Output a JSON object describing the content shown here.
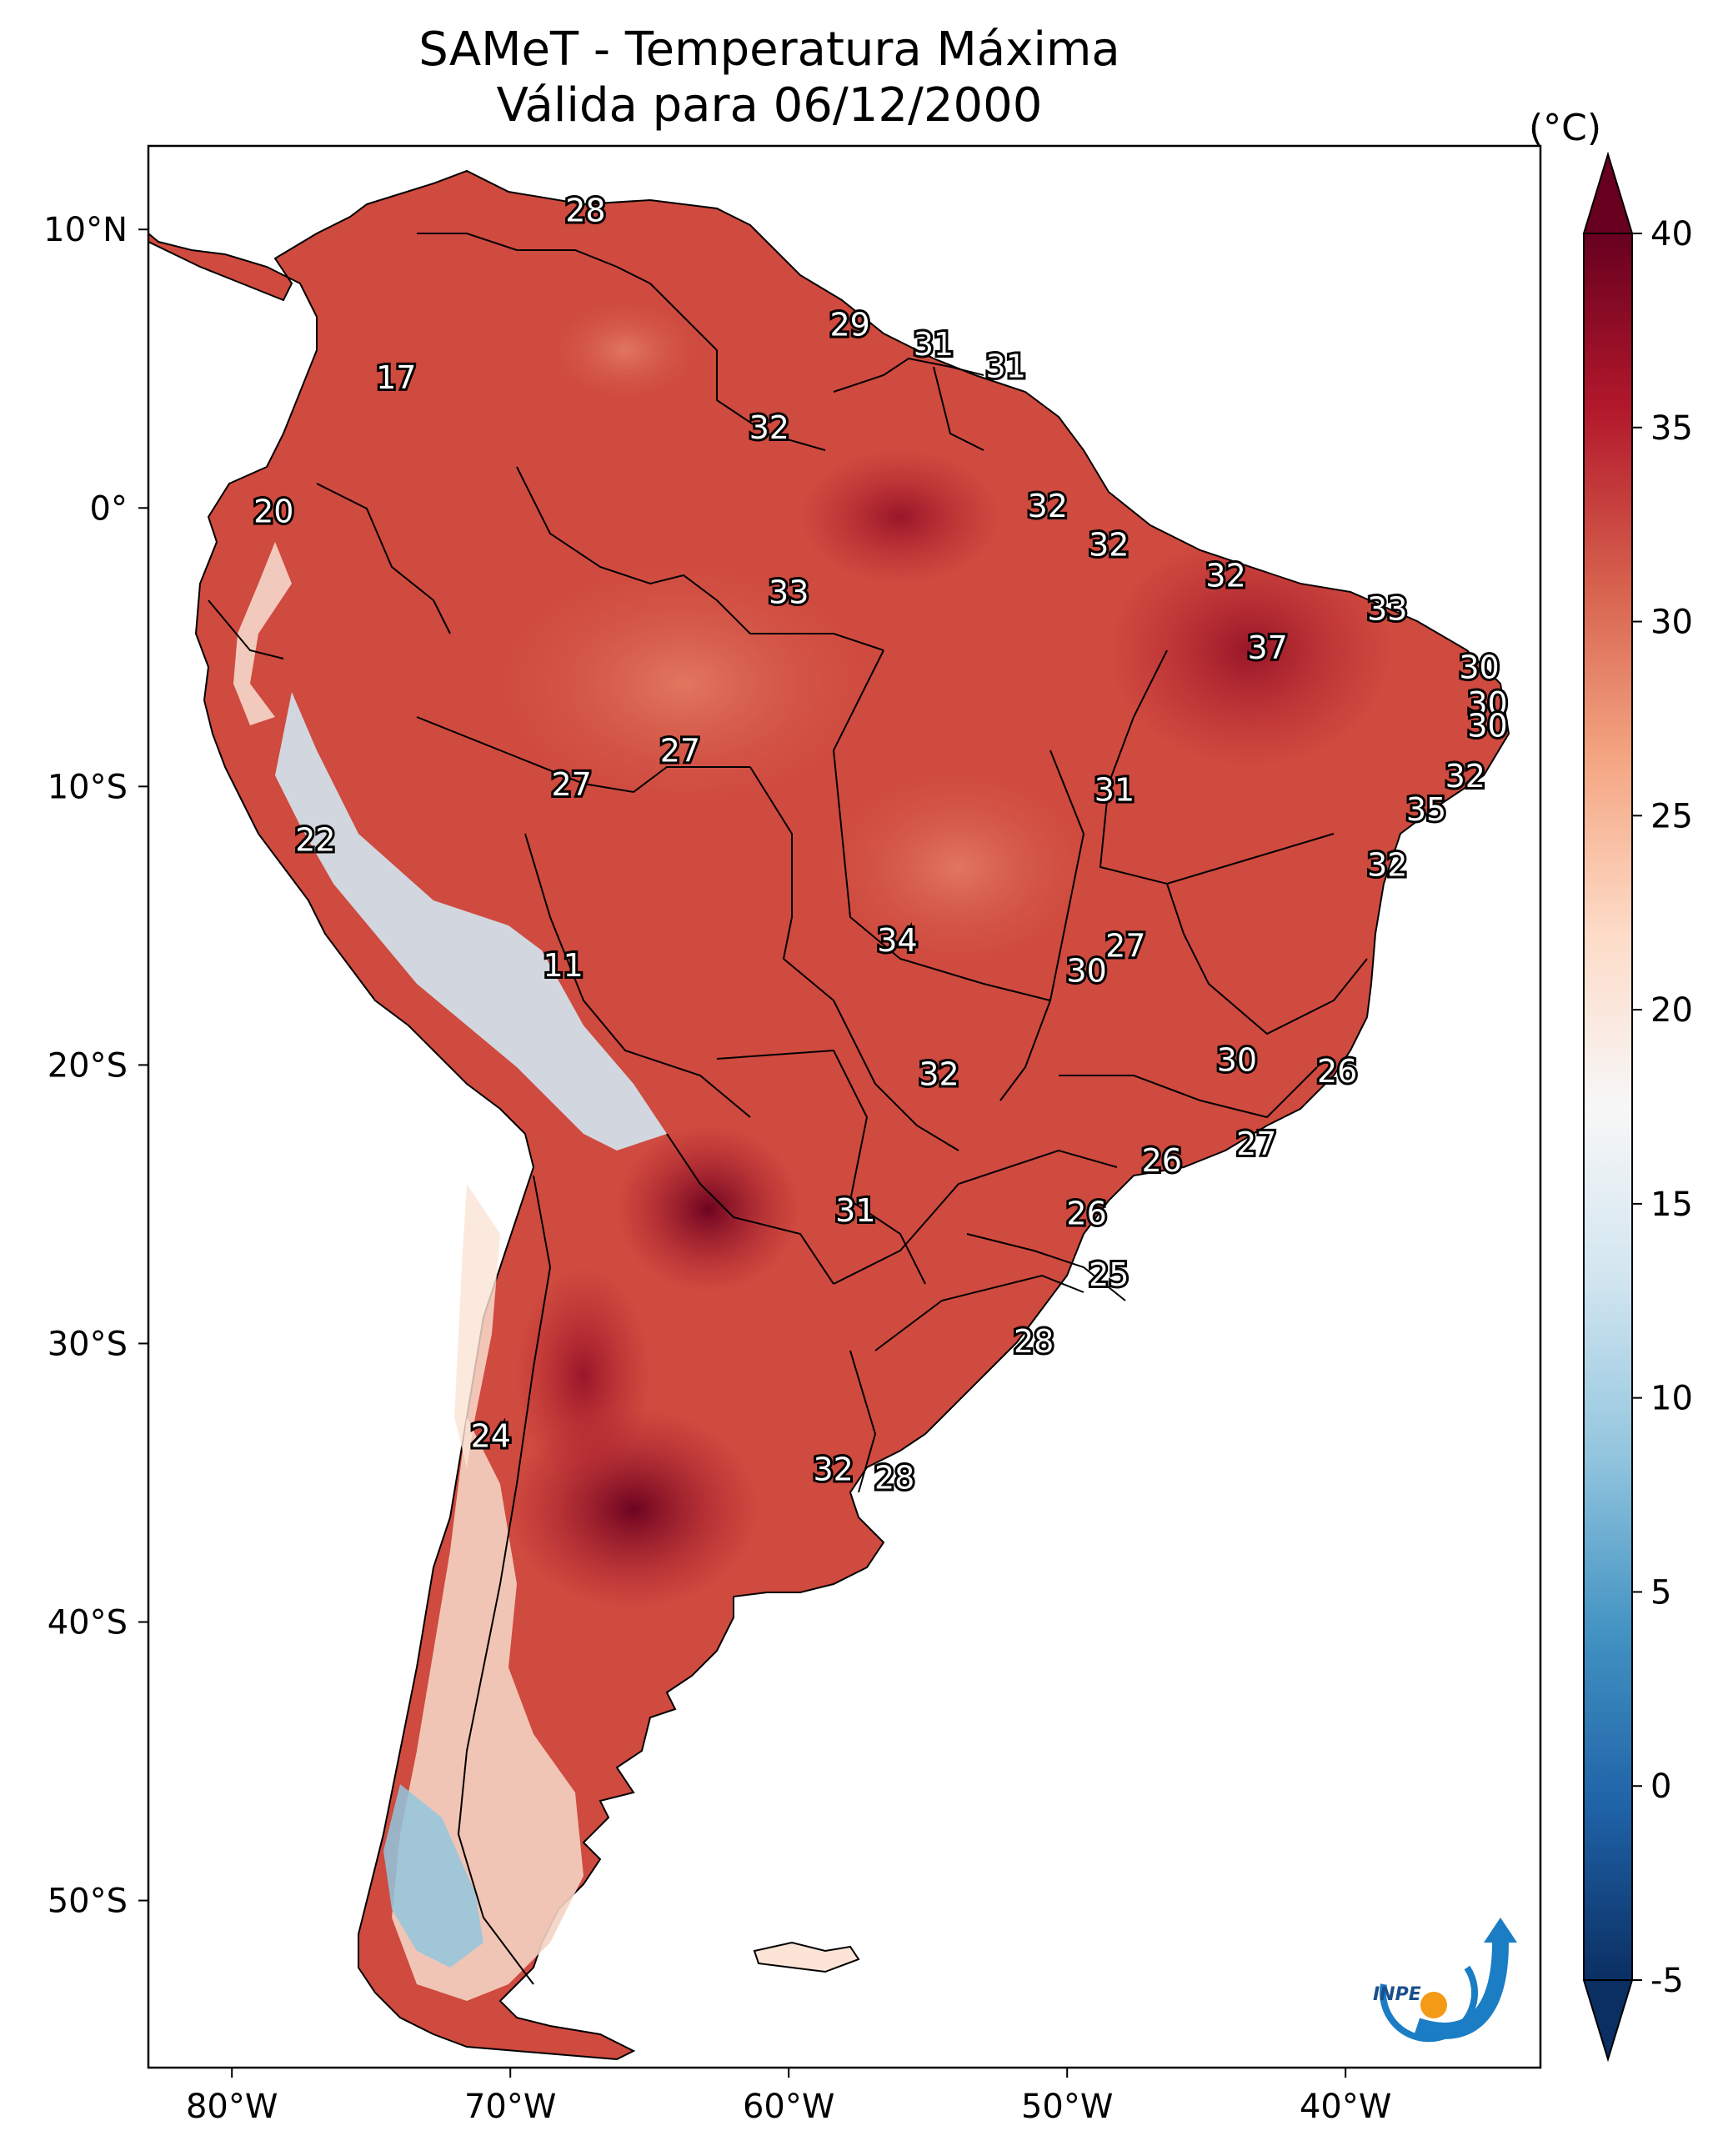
{
  "title": {
    "line1": "SAMeT - Temperatura Máxima",
    "line2": "Válida para 06/12/2000"
  },
  "colorbar": {
    "unit": "(°C)",
    "min": -5,
    "max": 40,
    "ticks": [
      "40",
      "35",
      "30",
      "25",
      "20",
      "15",
      "10",
      "5",
      "0",
      "-5"
    ],
    "tick_values": [
      40,
      35,
      30,
      25,
      20,
      15,
      10,
      5,
      0,
      -5
    ],
    "colors": [
      "#0b2f63",
      "#1f63a8",
      "#4393c3",
      "#92c5de",
      "#d1e5f0",
      "#f7f7f7",
      "#fddbc7",
      "#f4a582",
      "#d6604d",
      "#b2182b",
      "#67001f"
    ]
  },
  "axes": {
    "lon_labels": [
      "80°W",
      "70°W",
      "60°W",
      "50°W",
      "40°W"
    ],
    "lon_values": [
      -80,
      -70,
      -60,
      -50,
      -40
    ],
    "lat_labels": [
      "10°N",
      "0°",
      "10°S",
      "20°S",
      "30°S",
      "40°S",
      "50°S"
    ],
    "lat_values": [
      10,
      0,
      -10,
      -20,
      -30,
      -40,
      -50
    ],
    "lon_range": [
      -83,
      -33
    ],
    "lat_range": [
      -56,
      13
    ]
  },
  "stations": [
    {
      "label": "28",
      "lon": -67.3,
      "lat": 10.6
    },
    {
      "label": "29",
      "lon": -57.8,
      "lat": 6.5
    },
    {
      "label": "31",
      "lon": -54.8,
      "lat": 5.8
    },
    {
      "label": "31",
      "lon": -52.2,
      "lat": 5.0
    },
    {
      "label": "17",
      "lon": -74.1,
      "lat": 4.6
    },
    {
      "label": "32",
      "lon": -60.7,
      "lat": 2.8
    },
    {
      "label": "20",
      "lon": -78.5,
      "lat": -0.2
    },
    {
      "label": "32",
      "lon": -50.7,
      "lat": 0.0
    },
    {
      "label": "32",
      "lon": -48.5,
      "lat": -1.4
    },
    {
      "label": "33",
      "lon": -60.0,
      "lat": -3.1
    },
    {
      "label": "32",
      "lon": -44.3,
      "lat": -2.5
    },
    {
      "label": "33",
      "lon": -38.5,
      "lat": -3.7
    },
    {
      "label": "37",
      "lon": -42.8,
      "lat": -5.1
    },
    {
      "label": "30",
      "lon": -35.2,
      "lat": -5.8
    },
    {
      "label": "30",
      "lon": -34.9,
      "lat": -7.1
    },
    {
      "label": "30",
      "lon": -34.9,
      "lat": -7.9
    },
    {
      "label": "27",
      "lon": -63.9,
      "lat": -8.8
    },
    {
      "label": "27",
      "lon": -67.8,
      "lat": -10.0
    },
    {
      "label": "31",
      "lon": -48.3,
      "lat": -10.2
    },
    {
      "label": "32",
      "lon": -35.7,
      "lat": -9.7
    },
    {
      "label": "35",
      "lon": -37.1,
      "lat": -10.9
    },
    {
      "label": "22",
      "lon": -77.0,
      "lat": -12.0
    },
    {
      "label": "32",
      "lon": -38.5,
      "lat": -12.9
    },
    {
      "label": "34",
      "lon": -56.1,
      "lat": -15.6
    },
    {
      "label": "27",
      "lon": -47.9,
      "lat": -15.8
    },
    {
      "label": "30",
      "lon": -49.3,
      "lat": -16.7
    },
    {
      "label": "11",
      "lon": -68.1,
      "lat": -16.5
    },
    {
      "label": "32",
      "lon": -54.6,
      "lat": -20.4
    },
    {
      "label": "30",
      "lon": -43.9,
      "lat": -19.9
    },
    {
      "label": "26",
      "lon": -40.3,
      "lat": -20.3
    },
    {
      "label": "27",
      "lon": -43.2,
      "lat": -22.9
    },
    {
      "label": "26",
      "lon": -46.6,
      "lat": -23.5
    },
    {
      "label": "31",
      "lon": -57.6,
      "lat": -25.3
    },
    {
      "label": "26",
      "lon": -49.3,
      "lat": -25.4
    },
    {
      "label": "25",
      "lon": -48.5,
      "lat": -27.6
    },
    {
      "label": "28",
      "lon": -51.2,
      "lat": -30.0
    },
    {
      "label": "24",
      "lon": -70.7,
      "lat": -33.4
    },
    {
      "label": "32",
      "lon": -58.4,
      "lat": -34.6
    },
    {
      "label": "28",
      "lon": -56.2,
      "lat": -34.9
    }
  ],
  "logo": {
    "text": "INPE"
  }
}
